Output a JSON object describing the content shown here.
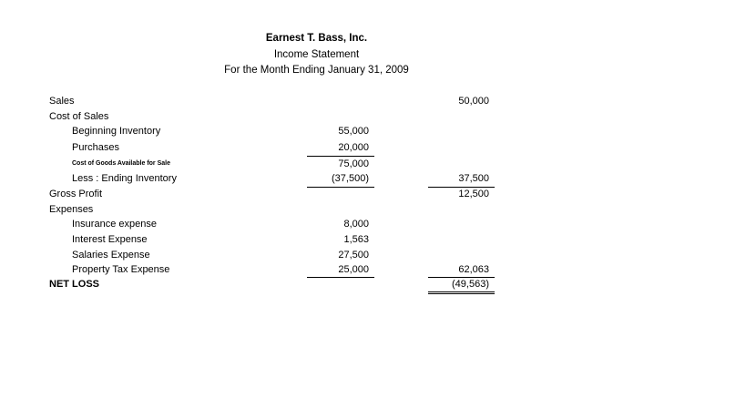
{
  "header": {
    "company": "Earnest T. Bass, Inc.",
    "statement": "Income Statement",
    "period": "For the Month Ending January 31, 2009"
  },
  "rows": [
    {
      "label": "Sales",
      "col1": "",
      "col2": "50,000",
      "style": ""
    },
    {
      "label": "Cost of Sales",
      "col1": "",
      "col2": "",
      "style": ""
    },
    {
      "label": "Beginning Inventory",
      "col1": "55,000",
      "col2": "",
      "style": "ind"
    },
    {
      "label": "Purchases",
      "col1": "20,000",
      "col2": "",
      "style": "ind"
    },
    {
      "label": "Cost of Goods Available for Sale",
      "col1": "75,000",
      "col2": "",
      "style": "ind small"
    },
    {
      "label": "Less : Ending Inventory",
      "col1": "(37,500)",
      "col2": "37,500",
      "style": "ind"
    },
    {
      "label": "Gross Profit",
      "col1": "",
      "col2": "12,500",
      "style": ""
    },
    {
      "label": "Expenses",
      "col1": "",
      "col2": "",
      "style": ""
    },
    {
      "label": "Insurance expense",
      "col1": "8,000",
      "col2": "",
      "style": "ind"
    },
    {
      "label": "Interest Expense",
      "col1": "1,563",
      "col2": "",
      "style": "ind"
    },
    {
      "label": "Salaries Expense",
      "col1": "27,500",
      "col2": "",
      "style": "ind"
    },
    {
      "label": "Property Tax Expense",
      "col1": "25,000",
      "col2": "62,063",
      "style": "ind"
    },
    {
      "label": "NET LOSS",
      "col1": "",
      "col2": "(49,563)",
      "style": "bold"
    }
  ]
}
